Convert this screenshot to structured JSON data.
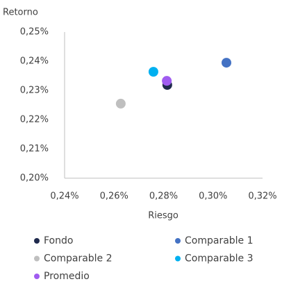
{
  "chart_data": {
    "type": "scatter",
    "y_label": "Retorno",
    "x_label": "Riesgo",
    "xlim": [
      0.24,
      0.32
    ],
    "xticks": [
      {
        "value": 0.24,
        "label": "0,24%"
      },
      {
        "value": 0.26,
        "label": "0,26%"
      },
      {
        "value": 0.28,
        "label": "0,28%"
      },
      {
        "value": 0.3,
        "label": "0,30%"
      },
      {
        "value": 0.32,
        "label": "0,32%"
      }
    ],
    "ylim": [
      0.2,
      0.25
    ],
    "yticks": [
      {
        "value": 0.2,
        "label": "0,20%"
      },
      {
        "value": 0.21,
        "label": "0,21%"
      },
      {
        "value": 0.22,
        "label": "0,22%"
      },
      {
        "value": 0.23,
        "label": "0,23%"
      },
      {
        "value": 0.24,
        "label": "0,24%"
      },
      {
        "value": 0.25,
        "label": "0,25%"
      }
    ],
    "grid": false,
    "legend": "bottom",
    "series": [
      {
        "name": "Fondo",
        "color": "#1f2a4d",
        "x": [
          0.2815
        ],
        "values": [
          0.2319
        ]
      },
      {
        "name": "Comparable 1",
        "color": "#4472c4",
        "x": [
          0.3054
        ],
        "values": [
          0.2395
        ]
      },
      {
        "name": "Comparable 2",
        "color": "#bfbfbf",
        "x": [
          0.2627
        ],
        "values": [
          0.2255
        ]
      },
      {
        "name": "Comparable 3",
        "color": "#00b0f0",
        "x": [
          0.2759
        ],
        "values": [
          0.2364
        ]
      },
      {
        "name": "Promedio",
        "color": "#a05cf0",
        "x": [
          0.2813
        ],
        "values": [
          0.2333
        ]
      }
    ]
  }
}
